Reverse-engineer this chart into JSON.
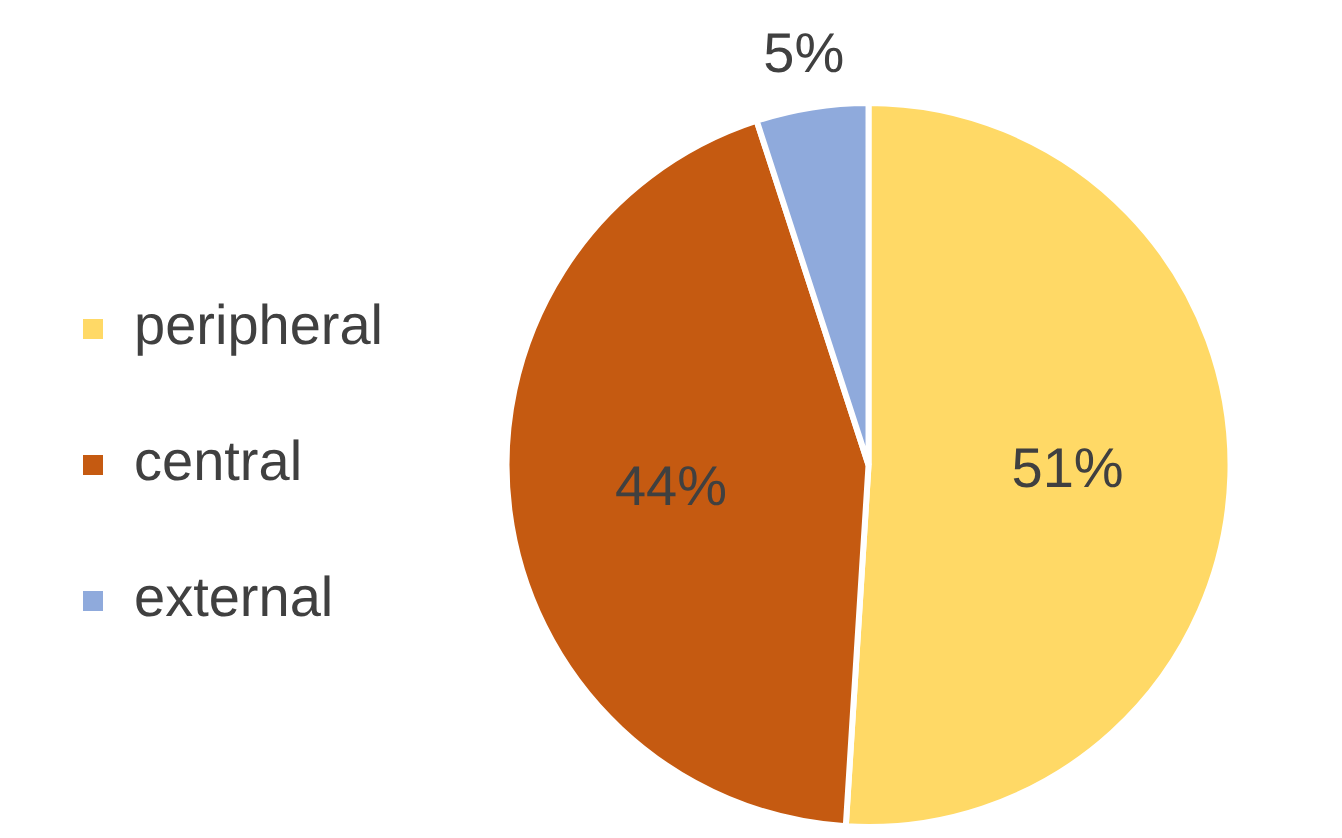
{
  "chart_data": {
    "type": "pie",
    "categories": [
      "peripheral",
      "central",
      "external"
    ],
    "values": [
      51,
      44,
      5
    ],
    "colors": [
      "#ffd966",
      "#c55a11",
      "#8faadc"
    ],
    "value_labels": [
      "51%",
      "44%",
      "5%"
    ],
    "legend": "left"
  }
}
